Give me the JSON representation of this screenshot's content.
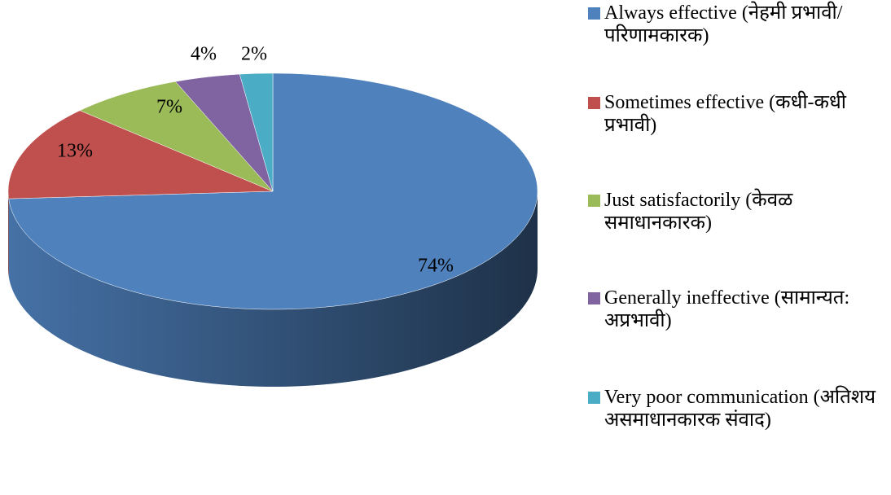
{
  "chart_data": {
    "type": "pie3d",
    "categories": [
      "Always effective (नेहमी प्रभावी/ परिणामकारक)",
      "Sometimes effective (कधी-कधी प्रभावी)",
      "Just satisfactorily (केवळ समाधानकारक)",
      "Generally ineffective (सामान्यत: अप्रभावी)",
      "Very poor communication (अतिशय असमाधानकारक संवाद)"
    ],
    "values": [
      74,
      13,
      7,
      4,
      2
    ],
    "value_labels": [
      "74%",
      "13%",
      "7%",
      "4%",
      "2%"
    ],
    "colors": [
      "#4f81bd",
      "#c0504d",
      "#9bbb59",
      "#8064a2",
      "#4bacc6"
    ],
    "legend": "right"
  }
}
